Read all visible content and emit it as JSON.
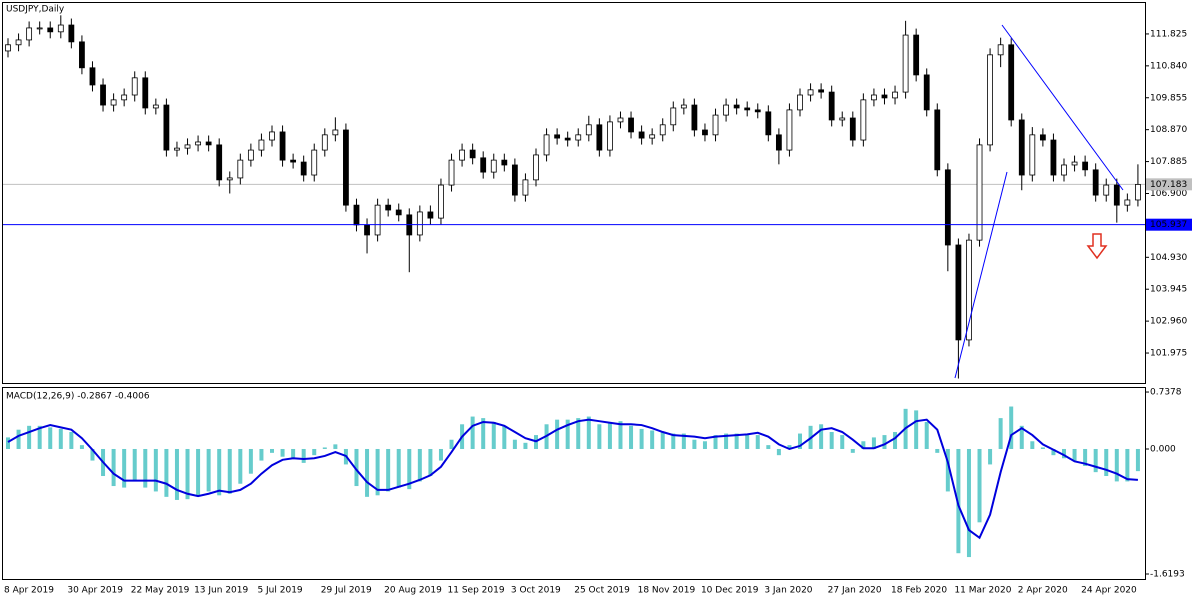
{
  "chart_data": [
    {
      "type": "candlestick",
      "title": "USDJPY,Daily",
      "categories": [
        "8 Apr 2019",
        null,
        null,
        null,
        null,
        null,
        "30 Apr 2019",
        null,
        null,
        null,
        null,
        null,
        "22 May 2019",
        null,
        null,
        null,
        null,
        null,
        "13 Jun 2019",
        null,
        null,
        null,
        null,
        null,
        "5 Jul 2019",
        null,
        null,
        null,
        null,
        null,
        "29 Jul 2019",
        null,
        null,
        null,
        null,
        null,
        "20 Aug 2019",
        null,
        null,
        null,
        null,
        null,
        "11 Sep 2019",
        null,
        null,
        null,
        null,
        null,
        "3 Oct 2019",
        null,
        null,
        null,
        null,
        null,
        "25 Oct 2019",
        null,
        null,
        null,
        null,
        null,
        "18 Nov 2019",
        null,
        null,
        null,
        null,
        null,
        "10 Dec 2019",
        null,
        null,
        null,
        null,
        null,
        "3 Jan 2020",
        null,
        null,
        null,
        null,
        null,
        "27 Jan 2020",
        null,
        null,
        null,
        null,
        null,
        "18 Feb 2020",
        null,
        null,
        null,
        null,
        null,
        "11 Mar 2020",
        null,
        null,
        null,
        null,
        null,
        "2 Apr 2020",
        null,
        null,
        null,
        null,
        null,
        "24 Apr 2020",
        null,
        null,
        null,
        null,
        null
      ],
      "open": [
        111.3,
        111.49,
        111.64,
        112.01,
        112.01,
        111.89,
        112.1,
        111.58,
        110.78,
        110.25,
        109.63,
        109.79,
        109.94,
        110.47,
        109.54,
        109.63,
        108.24,
        108.3,
        108.4,
        108.49,
        108.4,
        107.32,
        107.38,
        107.93,
        108.24,
        108.55,
        108.8,
        107.93,
        107.87,
        107.47,
        108.24,
        108.71,
        108.86,
        106.54,
        105.93,
        105.62,
        106.54,
        106.39,
        106.24,
        105.62,
        106.33,
        106.14,
        107.16,
        107.93,
        108.24,
        108.0,
        107.56,
        107.93,
        107.78,
        106.85,
        107.32,
        108.09,
        108.71,
        108.61,
        108.55,
        108.71,
        109.02,
        108.24,
        109.11,
        109.23,
        108.8,
        108.61,
        108.71,
        109.02,
        109.54,
        109.63,
        108.86,
        108.71,
        109.32,
        109.63,
        109.54,
        109.48,
        109.42,
        108.71,
        108.24,
        109.48,
        109.94,
        110.1,
        110.03,
        109.17,
        109.23,
        108.55,
        109.79,
        109.94,
        109.85,
        110.03,
        111.79,
        110.56,
        109.48,
        107.63,
        105.31,
        102.38,
        105.46,
        108.4,
        111.18,
        111.49,
        109.17,
        107.47,
        108.71,
        108.55,
        107.47,
        107.78,
        107.87,
        107.63,
        106.85,
        107.16,
        106.54,
        106.7
      ],
      "high": [
        111.69,
        111.84,
        112.21,
        112.21,
        112.21,
        112.4,
        112.3,
        111.78,
        110.98,
        110.45,
        109.99,
        110.14,
        110.67,
        110.67,
        109.83,
        109.83,
        108.5,
        108.6,
        108.69,
        108.69,
        108.6,
        107.58,
        108.13,
        108.44,
        108.75,
        109.0,
        109.0,
        108.13,
        108.07,
        108.44,
        108.91,
        109.25,
        109.06,
        106.74,
        106.13,
        106.74,
        106.74,
        106.59,
        106.44,
        106.53,
        106.53,
        107.36,
        108.13,
        108.44,
        108.44,
        108.2,
        108.13,
        108.13,
        107.98,
        107.52,
        108.29,
        108.91,
        108.91,
        108.81,
        108.91,
        109.3,
        109.22,
        109.31,
        109.43,
        109.43,
        109.0,
        108.91,
        109.22,
        109.74,
        109.83,
        109.83,
        109.06,
        109.52,
        109.83,
        109.83,
        109.74,
        109.68,
        109.62,
        108.91,
        109.68,
        110.14,
        110.3,
        110.3,
        110.23,
        109.43,
        109.43,
        109.99,
        110.14,
        110.14,
        110.23,
        112.23,
        111.99,
        110.76,
        109.68,
        107.83,
        105.51,
        105.66,
        108.6,
        111.38,
        111.71,
        111.69,
        109.37,
        108.95,
        108.91,
        108.75,
        107.98,
        108.07,
        108.07,
        107.83,
        107.36,
        107.36,
        106.9,
        107.8
      ],
      "low": [
        111.1,
        111.29,
        111.44,
        111.81,
        111.69,
        111.69,
        111.38,
        110.58,
        110.05,
        109.43,
        109.43,
        109.59,
        109.74,
        109.34,
        109.34,
        108.04,
        108.04,
        108.1,
        108.2,
        108.2,
        107.12,
        106.9,
        107.18,
        107.73,
        108.04,
        108.35,
        107.73,
        107.67,
        107.27,
        107.27,
        108.04,
        108.51,
        106.34,
        105.73,
        105.05,
        105.42,
        106.19,
        106.04,
        104.47,
        105.42,
        105.94,
        105.94,
        106.96,
        107.73,
        107.8,
        107.36,
        107.36,
        107.58,
        106.65,
        106.65,
        107.12,
        107.89,
        108.41,
        108.35,
        108.35,
        108.51,
        108.04,
        108.04,
        108.91,
        108.6,
        108.41,
        108.41,
        108.51,
        108.82,
        109.34,
        108.66,
        108.51,
        108.51,
        109.12,
        109.34,
        109.28,
        109.22,
        108.51,
        107.8,
        108.04,
        109.28,
        109.74,
        109.83,
        108.97,
        108.97,
        108.35,
        108.35,
        109.59,
        109.65,
        109.65,
        109.83,
        110.36,
        109.28,
        107.43,
        104.5,
        101.19,
        102.18,
        105.26,
        108.2,
        110.8,
        108.97,
        107.0,
        107.27,
        108.35,
        107.27,
        107.27,
        107.58,
        107.43,
        106.65,
        106.65,
        106.0,
        106.34,
        106.5
      ],
      "close": [
        111.49,
        111.64,
        112.01,
        112.01,
        111.89,
        112.1,
        111.58,
        110.78,
        110.25,
        109.63,
        109.79,
        109.94,
        110.47,
        109.54,
        109.63,
        108.24,
        108.3,
        108.4,
        108.49,
        108.4,
        107.32,
        107.38,
        107.93,
        108.24,
        108.55,
        108.8,
        107.93,
        107.87,
        107.47,
        108.24,
        108.71,
        108.86,
        106.54,
        105.93,
        105.62,
        106.54,
        106.39,
        106.24,
        105.62,
        106.33,
        106.14,
        107.16,
        107.93,
        108.24,
        108.0,
        107.56,
        107.93,
        107.78,
        106.85,
        107.32,
        108.09,
        108.71,
        108.61,
        108.55,
        108.71,
        109.02,
        108.24,
        109.11,
        109.23,
        108.8,
        108.61,
        108.71,
        109.02,
        109.54,
        109.63,
        108.86,
        108.71,
        109.32,
        109.63,
        109.54,
        109.48,
        109.42,
        108.71,
        108.24,
        109.48,
        109.94,
        110.1,
        110.03,
        109.17,
        109.23,
        108.55,
        109.79,
        109.94,
        109.85,
        110.03,
        111.79,
        110.56,
        109.48,
        107.63,
        105.31,
        102.38,
        105.46,
        108.4,
        111.18,
        111.49,
        109.17,
        107.47,
        108.71,
        108.55,
        107.47,
        107.78,
        107.87,
        107.63,
        106.85,
        107.16,
        106.54,
        106.7,
        107.18
      ],
      "up_color": "#ffffff",
      "down_color": "#000000",
      "ylim": [
        101.05,
        112.78
      ],
      "yticks": [
        111.825,
        {
          "value": 110.84,
          "label": "110.840"
        },
        109.855,
        {
          "value": 108.87,
          "label": "108.870"
        },
        107.885,
        {
          "value": 106.9,
          "label": "106.900"
        },
        {
          "value": 104.93,
          "label": "104.930"
        },
        103.945,
        {
          "value": 102.96,
          "label": "102.960"
        },
        101.975
      ],
      "hline": {
        "value": 105.937,
        "color": "#0000ff"
      },
      "last_price": 107.183
    },
    {
      "type": "macd",
      "title": "MACD(12,26,9) -0.2867 -0.4006",
      "histogram": {
        "color": "#66cccc",
        "values": [
          0.15,
          0.25,
          0.3,
          0.3,
          0.28,
          0.26,
          0.22,
          0.05,
          -0.15,
          -0.35,
          -0.48,
          -0.5,
          -0.42,
          -0.5,
          -0.55,
          -0.62,
          -0.66,
          -0.65,
          -0.6,
          -0.55,
          -0.6,
          -0.58,
          -0.45,
          -0.32,
          -0.15,
          -0.05,
          -0.1,
          -0.12,
          -0.18,
          -0.08,
          0.02,
          0.06,
          -0.2,
          -0.48,
          -0.62,
          -0.6,
          -0.55,
          -0.5,
          -0.52,
          -0.42,
          -0.35,
          -0.15,
          0.12,
          0.32,
          0.42,
          0.4,
          0.35,
          0.3,
          0.12,
          0.08,
          0.18,
          0.32,
          0.38,
          0.38,
          0.4,
          0.42,
          0.32,
          0.35,
          0.36,
          0.3,
          0.26,
          0.24,
          0.22,
          0.2,
          0.2,
          0.12,
          0.1,
          0.18,
          0.2,
          0.2,
          0.18,
          0.18,
          0.05,
          -0.08,
          0.05,
          0.2,
          0.3,
          0.32,
          0.22,
          0.18,
          -0.05,
          0.1,
          0.15,
          0.18,
          0.22,
          0.52,
          0.5,
          0.35,
          -0.05,
          -0.55,
          -1.35,
          -1.4,
          -0.95,
          -0.2,
          0.4,
          0.55,
          0.3,
          0.1,
          0.02,
          -0.08,
          -0.12,
          -0.15,
          -0.22,
          -0.3,
          -0.35,
          -0.42,
          -0.42,
          -0.2867
        ]
      },
      "signal": {
        "color": "#0000dd",
        "values": [
          0.09,
          0.17,
          0.22,
          0.27,
          0.31,
          0.28,
          0.25,
          0.14,
          -0.01,
          -0.17,
          -0.32,
          -0.41,
          -0.41,
          -0.41,
          -0.41,
          -0.45,
          -0.53,
          -0.58,
          -0.61,
          -0.58,
          -0.54,
          -0.56,
          -0.53,
          -0.45,
          -0.32,
          -0.21,
          -0.14,
          -0.12,
          -0.13,
          -0.12,
          -0.09,
          -0.04,
          -0.09,
          -0.27,
          -0.43,
          -0.53,
          -0.53,
          -0.49,
          -0.45,
          -0.4,
          -0.34,
          -0.23,
          -0.04,
          0.16,
          0.3,
          0.35,
          0.34,
          0.3,
          0.22,
          0.14,
          0.1,
          0.17,
          0.25,
          0.31,
          0.36,
          0.38,
          0.36,
          0.34,
          0.32,
          0.32,
          0.31,
          0.27,
          0.22,
          0.18,
          0.17,
          0.16,
          0.14,
          0.16,
          0.17,
          0.18,
          0.19,
          0.21,
          0.16,
          0.06,
          0.0,
          0.04,
          0.14,
          0.25,
          0.27,
          0.22,
          0.12,
          0.01,
          0.01,
          0.06,
          0.14,
          0.27,
          0.36,
          0.38,
          0.25,
          -0.17,
          -0.73,
          -1.05,
          -1.15,
          -0.85,
          -0.3,
          0.18,
          0.27,
          0.18,
          0.06,
          -0.01,
          -0.08,
          -0.16,
          -0.19,
          -0.23,
          -0.27,
          -0.32,
          -0.39,
          -0.4006
        ]
      },
      "ylim": [
        -1.697,
        0.79
      ],
      "yticks": [
        0.7378,
        {
          "value": 0,
          "label": "0.000"
        },
        -1.6193
      ]
    }
  ]
}
